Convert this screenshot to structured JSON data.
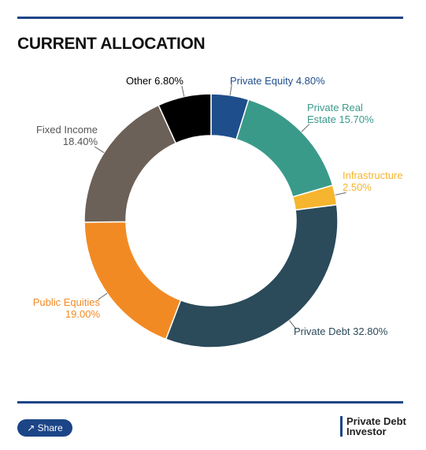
{
  "chart_data": {
    "type": "donut",
    "title": "CURRENT ALLOCATION",
    "categories": [
      "Private Equity",
      "Private Real Estate",
      "Infrastructure",
      "Private Debt",
      "Public Equities",
      "Fixed Income",
      "Other"
    ],
    "values": [
      4.8,
      15.7,
      2.5,
      32.8,
      19.0,
      18.4,
      6.8
    ],
    "value_labels": [
      "4.80%",
      "15.70%",
      "2.50%",
      "32.80%",
      "19.00%",
      "18.40%",
      "6.80%"
    ],
    "colors": [
      "#1f4e8c",
      "#3a9a8a",
      "#f6b52e",
      "#2b4a5a",
      "#f28a24",
      "#6b6158",
      "#000000"
    ]
  },
  "share_label": "Share",
  "brand": "Private Debt Investor"
}
